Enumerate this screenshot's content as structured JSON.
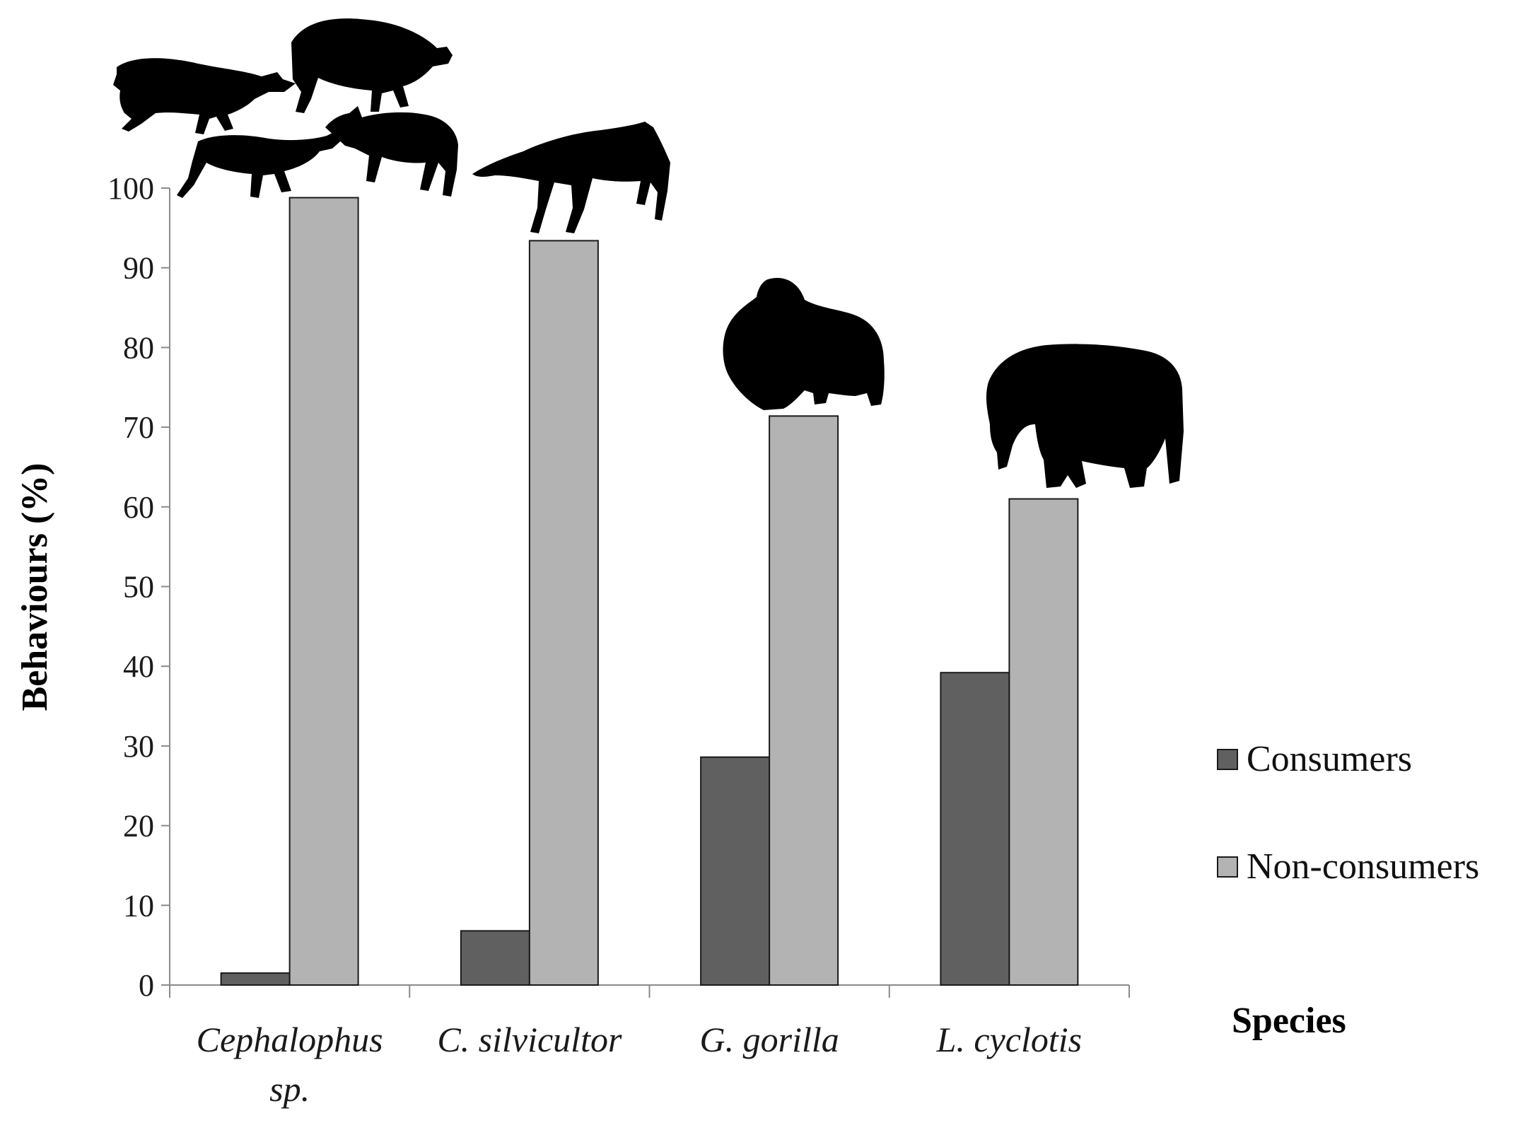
{
  "chart_data": {
    "type": "bar",
    "title": "",
    "xlabel": "Species",
    "ylabel": "Behaviours (%)",
    "ylim": [
      0,
      100
    ],
    "yticks": [
      0,
      10,
      20,
      30,
      40,
      50,
      60,
      70,
      80,
      90,
      100
    ],
    "grid": false,
    "legend_position": "right",
    "categories": [
      {
        "lines": [
          "Cephalophus",
          "sp."
        ]
      },
      {
        "lines": [
          "C. silvicultor"
        ]
      },
      {
        "lines": [
          "G. gorilla"
        ]
      },
      {
        "lines": [
          "L. cyclotis"
        ]
      }
    ],
    "series": [
      {
        "name": "Consumers",
        "color": "#606060",
        "values": [
          1.5,
          6.8,
          28.6,
          39.2
        ]
      },
      {
        "name": "Non-consumers",
        "color": "#b3b3b3",
        "values": [
          98.8,
          93.4,
          71.4,
          61.0
        ]
      }
    ],
    "icons": [
      "duiker-silhouette-icon",
      "antelope-silhouette-icon",
      "gorilla-silhouette-icon",
      "elephant-silhouette-icon"
    ]
  }
}
